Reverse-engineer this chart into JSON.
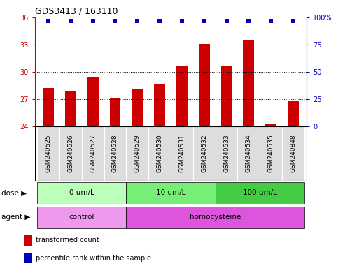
{
  "title": "GDS3413 / 163110",
  "samples": [
    "GSM240525",
    "GSM240526",
    "GSM240527",
    "GSM240528",
    "GSM240529",
    "GSM240530",
    "GSM240531",
    "GSM240532",
    "GSM240533",
    "GSM240534",
    "GSM240535",
    "GSM240848"
  ],
  "bar_values": [
    28.2,
    27.9,
    29.5,
    27.1,
    28.1,
    28.6,
    30.7,
    33.1,
    30.6,
    33.5,
    24.3,
    26.8
  ],
  "percentile_value": 97,
  "bar_color": "#CC0000",
  "dot_color": "#0000BB",
  "ylim_left": [
    24,
    36
  ],
  "yticks_left": [
    24,
    27,
    30,
    33,
    36
  ],
  "ylim_right": [
    0,
    100
  ],
  "yticks_right": [
    0,
    25,
    50,
    75,
    100
  ],
  "ylabel_right_labels": [
    "0",
    "25",
    "50",
    "75",
    "100%"
  ],
  "dose_groups": [
    {
      "label": "0 um/L",
      "start": 0,
      "end": 4,
      "color": "#BBFFBB"
    },
    {
      "label": "10 um/L",
      "start": 4,
      "end": 8,
      "color": "#77EE77"
    },
    {
      "label": "100 um/L",
      "start": 8,
      "end": 12,
      "color": "#44CC44"
    }
  ],
  "agent_groups": [
    {
      "label": "control",
      "start": 0,
      "end": 4,
      "color": "#EE99EE"
    },
    {
      "label": "homocysteine",
      "start": 4,
      "end": 12,
      "color": "#DD55DD"
    }
  ],
  "dose_label": "dose",
  "agent_label": "agent",
  "legend_bar_label": "transformed count",
  "legend_dot_label": "percentile rank within the sample",
  "background_color": "#FFFFFF",
  "tick_color_left": "#CC0000",
  "tick_color_right": "#0000BB",
  "sample_box_color": "#DDDDDD",
  "border_color": "#000000"
}
